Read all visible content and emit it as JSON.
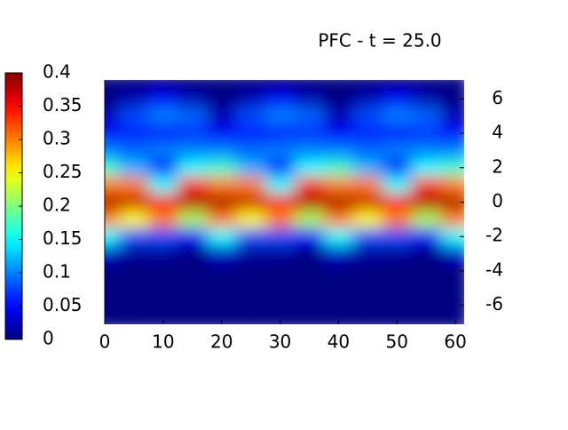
{
  "chart_data": {
    "type": "heatmap",
    "title": "PFC - t = 25.0",
    "colormap": "jet",
    "x": [
      0,
      5,
      10,
      15,
      20,
      25,
      30,
      35,
      40,
      45,
      50,
      55,
      60
    ],
    "y": [
      7,
      6,
      5,
      4,
      3,
      2,
      1,
      0,
      -1,
      -2,
      -3,
      -4,
      -5,
      -6,
      -7
    ],
    "z": [
      [
        0,
        0,
        0,
        0,
        0,
        0,
        0,
        0,
        0,
        0,
        0,
        0,
        0
      ],
      [
        0,
        0.02,
        0.05,
        0.02,
        0,
        0.02,
        0.05,
        0.02,
        0,
        0.02,
        0.05,
        0.02,
        0
      ],
      [
        0.02,
        0.08,
        0.1,
        0.09,
        0.02,
        0.08,
        0.1,
        0.09,
        0.02,
        0.08,
        0.1,
        0.09,
        0.02
      ],
      [
        0.05,
        0.06,
        0.05,
        0.07,
        0.05,
        0.06,
        0.05,
        0.07,
        0.05,
        0.06,
        0.05,
        0.07,
        0.05
      ],
      [
        0.1,
        0.09,
        0.1,
        0.1,
        0.1,
        0.09,
        0.1,
        0.1,
        0.1,
        0.09,
        0.1,
        0.1,
        0.1
      ],
      [
        0.17,
        0.12,
        0.05,
        0.15,
        0.17,
        0.12,
        0.05,
        0.15,
        0.17,
        0.12,
        0.05,
        0.15,
        0.17
      ],
      [
        0.3,
        0.3,
        0.15,
        0.33,
        0.3,
        0.3,
        0.15,
        0.33,
        0.3,
        0.3,
        0.15,
        0.33,
        0.3
      ],
      [
        0.38,
        0.37,
        0.35,
        0.38,
        0.38,
        0.37,
        0.35,
        0.38,
        0.38,
        0.37,
        0.35,
        0.38,
        0.38
      ],
      [
        0.3,
        0.25,
        0.3,
        0.22,
        0.3,
        0.25,
        0.3,
        0.22,
        0.3,
        0.25,
        0.3,
        0.22,
        0.3
      ],
      [
        0.15,
        0.08,
        0.08,
        0.05,
        0.15,
        0.08,
        0.08,
        0.05,
        0.15,
        0.08,
        0.08,
        0.05,
        0.15
      ],
      [
        0.03,
        0.01,
        0.01,
        0,
        0.03,
        0.01,
        0.01,
        0,
        0.03,
        0.01,
        0.01,
        0,
        0.03
      ],
      [
        0,
        0,
        0,
        0,
        0,
        0,
        0,
        0,
        0,
        0,
        0,
        0,
        0
      ],
      [
        0,
        0,
        0,
        0,
        0,
        0,
        0,
        0,
        0,
        0,
        0,
        0,
        0
      ],
      [
        0,
        0,
        0,
        0,
        0,
        0,
        0,
        0,
        0,
        0,
        0,
        0,
        0
      ],
      [
        0,
        0,
        0,
        0,
        0,
        0,
        0,
        0,
        0,
        0,
        0,
        0,
        0
      ]
    ],
    "xlim": [
      0,
      61.5
    ],
    "xticks": [
      0,
      10,
      20,
      30,
      40,
      50,
      60
    ],
    "ylim": [
      -7.1,
      7.1
    ],
    "yticks": [
      6,
      4,
      2,
      0,
      -2,
      -4,
      -6
    ],
    "clim": [
      0,
      0.4
    ],
    "cticks": [
      0,
      0.05,
      0.1,
      0.15,
      0.2,
      0.25,
      0.3,
      0.35,
      0.4
    ]
  }
}
